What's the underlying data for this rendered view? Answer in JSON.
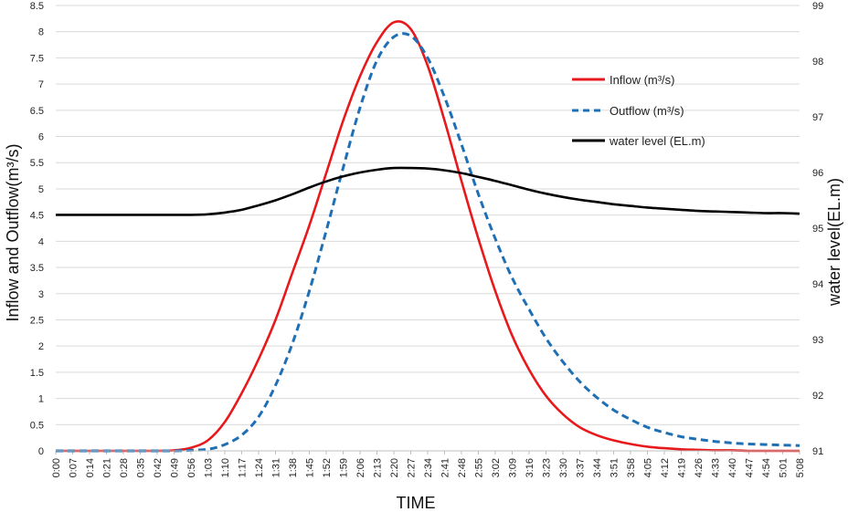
{
  "chart_data": {
    "type": "line",
    "xlabel": "TIME",
    "ylabel_left": "Inflow and Outflow(m³/s)",
    "ylabel_right": "water level(EL.m)",
    "ylim_left": [
      0,
      8.5
    ],
    "ylim_right": [
      91,
      99
    ],
    "yticks_left": [
      "0",
      "0.5",
      "1",
      "1.5",
      "2",
      "2.5",
      "3",
      "3.5",
      "4",
      "4.5",
      "5",
      "5.5",
      "6",
      "6.5",
      "7",
      "7.5",
      "8",
      "8.5"
    ],
    "yticks_right": [
      "91",
      "92",
      "93",
      "94",
      "95",
      "96",
      "97",
      "98",
      "99"
    ],
    "x_categories": [
      "0:00",
      "0:07",
      "0:14",
      "0:21",
      "0:28",
      "0:35",
      "0:42",
      "0:49",
      "0:56",
      "1:03",
      "1:10",
      "1:17",
      "1:24",
      "1:31",
      "1:38",
      "1:45",
      "1:52",
      "1:59",
      "2:06",
      "2:13",
      "2:20",
      "2:27",
      "2:34",
      "2:41",
      "2:48",
      "2:55",
      "3:02",
      "3:09",
      "3:16",
      "3:23",
      "3:30",
      "3:37",
      "3:44",
      "3:51",
      "3:58",
      "4:05",
      "4:12",
      "4:19",
      "4:26",
      "4:33",
      "4:40",
      "4:47",
      "4:54",
      "5:01",
      "5:08"
    ],
    "grid": true,
    "legend_position": "top-right",
    "series": [
      {
        "name": "Inflow (m³/s)",
        "axis": "left",
        "color": "#e8191c",
        "dash": "solid",
        "values": [
          0,
          0,
          0,
          0,
          0,
          0,
          0,
          0.01,
          0.06,
          0.2,
          0.55,
          1.1,
          1.75,
          2.5,
          3.4,
          4.3,
          5.3,
          6.3,
          7.15,
          7.8,
          8.18,
          8.05,
          7.35,
          6.3,
          5.15,
          4.05,
          3.05,
          2.2,
          1.55,
          1.05,
          0.7,
          0.45,
          0.3,
          0.2,
          0.13,
          0.08,
          0.05,
          0.03,
          0.02,
          0.01,
          0.01,
          0,
          0,
          0,
          0
        ]
      },
      {
        "name": "Outflow (m³/s)",
        "axis": "left",
        "color": "#1f6fb5",
        "dash": "dashed",
        "values": [
          0,
          0,
          0,
          0,
          0,
          0,
          0,
          0,
          0.01,
          0.03,
          0.12,
          0.3,
          0.65,
          1.25,
          2.05,
          3.05,
          4.2,
          5.4,
          6.55,
          7.45,
          7.9,
          7.92,
          7.5,
          6.75,
          5.85,
          4.9,
          4.05,
          3.3,
          2.7,
          2.15,
          1.7,
          1.32,
          1.02,
          0.78,
          0.6,
          0.45,
          0.35,
          0.27,
          0.22,
          0.18,
          0.15,
          0.13,
          0.12,
          0.11,
          0.1
        ]
      },
      {
        "name": "water level (EL.m)",
        "axis": "right",
        "color": "#000000",
        "dash": "solid",
        "values": [
          95.24,
          95.24,
          95.24,
          95.24,
          95.24,
          95.24,
          95.24,
          95.24,
          95.24,
          95.25,
          95.28,
          95.33,
          95.41,
          95.5,
          95.61,
          95.73,
          95.84,
          95.93,
          96.0,
          96.05,
          96.08,
          96.08,
          96.07,
          96.04,
          95.99,
          95.92,
          95.85,
          95.77,
          95.69,
          95.62,
          95.56,
          95.51,
          95.47,
          95.43,
          95.4,
          95.37,
          95.35,
          95.33,
          95.31,
          95.3,
          95.29,
          95.28,
          95.27,
          95.27,
          95.26
        ]
      }
    ]
  }
}
